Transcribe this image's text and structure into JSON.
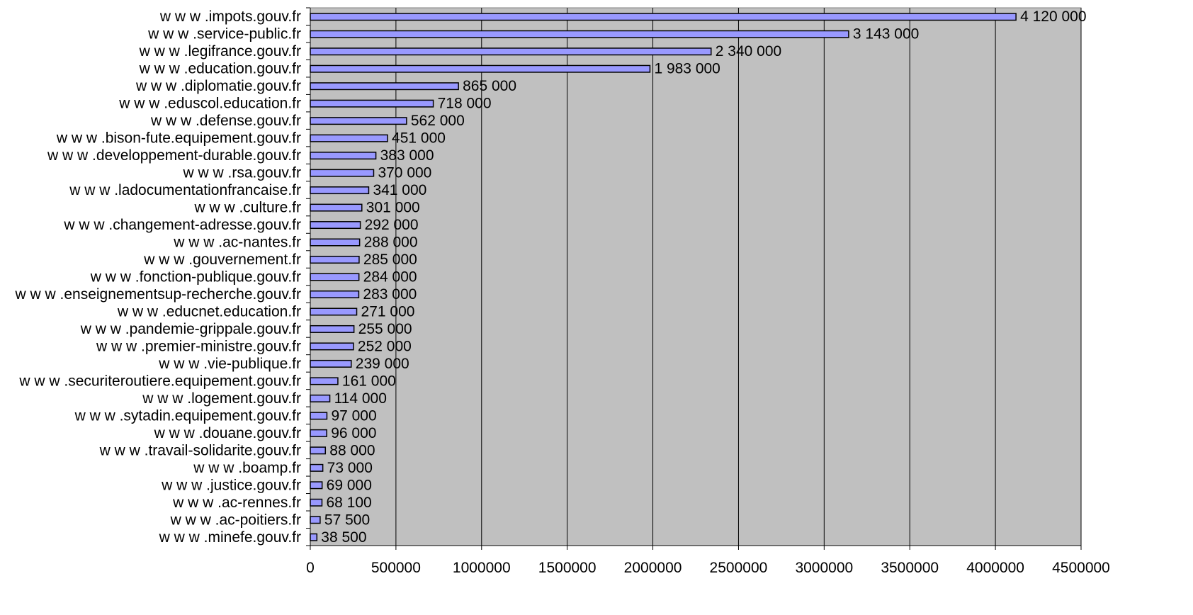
{
  "chart_data": {
    "type": "bar",
    "orientation": "horizontal",
    "title": "",
    "xlabel": "",
    "ylabel": "",
    "xlim": [
      0,
      4500000
    ],
    "x_ticks": [
      "0",
      "500000",
      "1000000",
      "1500000",
      "2000000",
      "2500000",
      "3000000",
      "3500000",
      "4000000",
      "4500000"
    ],
    "grid": "vertical",
    "legend": "none",
    "colors": {
      "bar_fill": "#9999ff",
      "bar_stroke": "#000000",
      "plot_bg": "#c0c0c0",
      "grid": "#000000"
    },
    "categories": [
      "w w w .impots.gouv.fr",
      "w w w .service-public.fr",
      "w w w .legifrance.gouv.fr",
      "w w w .education.gouv.fr",
      "w w w .diplomatie.gouv.fr",
      "w w w .eduscol.education.fr",
      "w w w .defense.gouv.fr",
      "w w w .bison-fute.equipement.gouv.fr",
      "w w w .developpement-durable.gouv.fr",
      "w w w .rsa.gouv.fr",
      "w w w .ladocumentationfrancaise.fr",
      "w w w .culture.fr",
      "w w w .changement-adresse.gouv.fr",
      "w w w .ac-nantes.fr",
      "w w w .gouvernement.fr",
      "w w w .fonction-publique.gouv.fr",
      "w w w .enseignementsup-recherche.gouv.fr",
      "w w w .educnet.education.fr",
      "w w w .pandemie-grippale.gouv.fr",
      "w w w .premier-ministre.gouv.fr",
      "w w w .vie-publique.fr",
      "w w w .securiteroutiere.equipement.gouv.fr",
      "w w w .logement.gouv.fr",
      "w w w .sytadin.equipement.gouv.fr",
      "w w w .douane.gouv.fr",
      "w w w .travail-solidarite.gouv.fr",
      "w w w .boamp.fr",
      "w w w .justice.gouv.fr",
      "w w w .ac-rennes.fr",
      "w w w .ac-poitiers.fr",
      "w w w .minefe.gouv.fr"
    ],
    "values": [
      4120000,
      3143000,
      2340000,
      1983000,
      865000,
      718000,
      562000,
      451000,
      383000,
      370000,
      341000,
      301000,
      292000,
      288000,
      285000,
      284000,
      283000,
      271000,
      255000,
      252000,
      239000,
      161000,
      114000,
      97000,
      96000,
      88000,
      73000,
      69000,
      68100,
      57500,
      38500
    ],
    "data_labels": [
      "4 120 000",
      "3 143 000",
      "2 340 000",
      "1 983 000",
      "865 000",
      "718 000",
      "562 000",
      "451 000",
      "383 000",
      "370 000",
      "341 000",
      "301 000",
      "292 000",
      "288 000",
      "285 000",
      "284 000",
      "283 000",
      "271 000",
      "255 000",
      "252 000",
      "239 000",
      "161 000",
      "114 000",
      "97 000",
      "96 000",
      "88 000",
      "73 000",
      "69 000",
      "68 100",
      "57 500",
      "38 500"
    ]
  }
}
